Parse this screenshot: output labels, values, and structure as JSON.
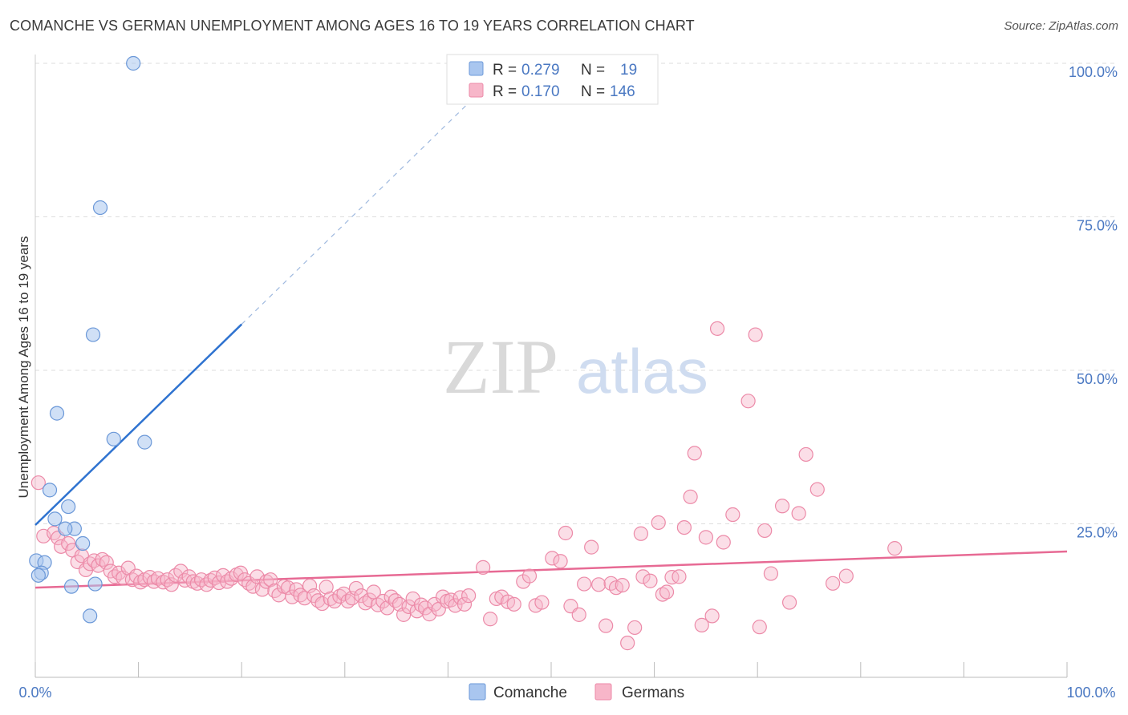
{
  "header": {
    "title": "COMANCHE VS GERMAN UNEMPLOYMENT AMONG AGES 16 TO 19 YEARS CORRELATION CHART",
    "source": "Source: ZipAtlas.com"
  },
  "watermark": {
    "zip": "ZIP",
    "atlas": "atlas"
  },
  "colors": {
    "comanche_fill": "#a9c6ef",
    "comanche_stroke": "#6b98d8",
    "comanche_line": "#2f73d0",
    "germans_fill": "#f7b6c9",
    "germans_stroke": "#ec8aa8",
    "germans_line": "#e76a94",
    "tick_text": "#4a78c2",
    "grid": "#dddddd"
  },
  "stats_box": {
    "rows": [
      {
        "r_label": "R =",
        "r_value": "0.279",
        "n_label": "N =",
        "n_value": "19"
      },
      {
        "r_label": "R =",
        "r_value": "0.170",
        "n_label": "N =",
        "n_value": "146"
      }
    ]
  },
  "chart_data": {
    "type": "scatter",
    "title": "COMANCHE VS GERMAN UNEMPLOYMENT AMONG AGES 16 TO 19 YEARS CORRELATION CHART",
    "xlabel": "",
    "ylabel": "Unemployment Among Ages 16 to 19 years",
    "xlim": [
      0,
      100
    ],
    "ylim": [
      0,
      100
    ],
    "x_tick_labels": [
      "0.0%",
      "100.0%"
    ],
    "y_ticks": [
      25,
      50,
      75,
      100
    ],
    "y_tick_labels": [
      "25.0%",
      "50.0%",
      "75.0%",
      "100.0%"
    ],
    "grid": true,
    "legend": "bottom-center",
    "series": [
      {
        "name": "Comanche",
        "r": 0.279,
        "n": 19,
        "trend": {
          "x": [
            0,
            20
          ],
          "y": [
            24.8,
            57.5
          ],
          "extension_x": [
            20,
            43.5
          ],
          "extension_y": [
            57.5,
            96
          ]
        },
        "points": [
          [
            9.5,
            100
          ],
          [
            6.3,
            76.5
          ],
          [
            5.6,
            55.8
          ],
          [
            2.1,
            43
          ],
          [
            7.6,
            38.8
          ],
          [
            10.6,
            38.3
          ],
          [
            1.4,
            30.5
          ],
          [
            3.2,
            27.8
          ],
          [
            1.9,
            25.8
          ],
          [
            3.8,
            24.2
          ],
          [
            2.9,
            24.2
          ],
          [
            4.6,
            21.8
          ],
          [
            0.1,
            19
          ],
          [
            0.9,
            18.7
          ],
          [
            0.6,
            17
          ],
          [
            0.3,
            16.6
          ],
          [
            3.5,
            14.8
          ],
          [
            5.8,
            15.2
          ],
          [
            5.3,
            10
          ]
        ]
      },
      {
        "name": "Germans",
        "r": 0.17,
        "n": 146,
        "trend": {
          "x": [
            0,
            100
          ],
          "y": [
            14.6,
            20.5
          ]
        },
        "points": [
          [
            0.3,
            31.7
          ],
          [
            0.8,
            23
          ],
          [
            1.8,
            23.5
          ],
          [
            2.2,
            22.7
          ],
          [
            2.5,
            21.3
          ],
          [
            3.2,
            21.8
          ],
          [
            3.6,
            20.7
          ],
          [
            4.1,
            18.8
          ],
          [
            4.5,
            19.8
          ],
          [
            4.9,
            17.5
          ],
          [
            5.3,
            18.5
          ],
          [
            5.7,
            19
          ],
          [
            6.1,
            18.2
          ],
          [
            6.5,
            19.2
          ],
          [
            6.9,
            18.7
          ],
          [
            7.3,
            17.3
          ],
          [
            7.7,
            16.4
          ],
          [
            8.1,
            17
          ],
          [
            8.5,
            16.2
          ],
          [
            9.0,
            17.8
          ],
          [
            9.4,
            15.9
          ],
          [
            9.8,
            16.5
          ],
          [
            10.2,
            15.5
          ],
          [
            10.6,
            15.9
          ],
          [
            11.1,
            16.3
          ],
          [
            11.5,
            15.6
          ],
          [
            11.9,
            16.1
          ],
          [
            12.4,
            15.5
          ],
          [
            12.8,
            15.9
          ],
          [
            13.2,
            15.1
          ],
          [
            13.6,
            16.6
          ],
          [
            14.1,
            17.3
          ],
          [
            14.5,
            15.8
          ],
          [
            14.9,
            16.4
          ],
          [
            15.3,
            15.6
          ],
          [
            15.7,
            15.3
          ],
          [
            16.1,
            15.9
          ],
          [
            16.6,
            15.1
          ],
          [
            17.0,
            15.8
          ],
          [
            17.4,
            16.2
          ],
          [
            17.8,
            15.4
          ],
          [
            18.2,
            16.6
          ],
          [
            18.6,
            15.6
          ],
          [
            19.0,
            16.1
          ],
          [
            19.5,
            16.7
          ],
          [
            19.9,
            17
          ],
          [
            20.3,
            15.9
          ],
          [
            20.7,
            15.3
          ],
          [
            21.1,
            14.8
          ],
          [
            21.5,
            16.4
          ],
          [
            22.0,
            14.3
          ],
          [
            22.4,
            15.6
          ],
          [
            22.8,
            15.9
          ],
          [
            23.2,
            14.1
          ],
          [
            23.6,
            13.4
          ],
          [
            24.1,
            14.8
          ],
          [
            24.5,
            14.6
          ],
          [
            24.9,
            13.1
          ],
          [
            25.3,
            14.3
          ],
          [
            25.7,
            13.4
          ],
          [
            26.1,
            12.9
          ],
          [
            26.6,
            14.9
          ],
          [
            27.0,
            13.3
          ],
          [
            27.4,
            12.5
          ],
          [
            27.8,
            12
          ],
          [
            28.2,
            14.7
          ],
          [
            28.6,
            12.8
          ],
          [
            29.0,
            12.4
          ],
          [
            29.5,
            13.2
          ],
          [
            29.9,
            13.6
          ],
          [
            30.3,
            12.4
          ],
          [
            30.7,
            12.9
          ],
          [
            31.1,
            14.5
          ],
          [
            31.6,
            13.3
          ],
          [
            32.0,
            12.1
          ],
          [
            32.4,
            12.6
          ],
          [
            32.8,
            13.9
          ],
          [
            33.2,
            11.8
          ],
          [
            33.7,
            12.4
          ],
          [
            34.1,
            11.3
          ],
          [
            34.5,
            13.1
          ],
          [
            34.9,
            12.5
          ],
          [
            35.3,
            11.9
          ],
          [
            35.7,
            10.2
          ],
          [
            36.2,
            11.5
          ],
          [
            36.6,
            12.8
          ],
          [
            37.0,
            10.8
          ],
          [
            37.4,
            11.8
          ],
          [
            37.8,
            11.3
          ],
          [
            38.2,
            10.3
          ],
          [
            38.7,
            11.9
          ],
          [
            39.1,
            11.1
          ],
          [
            39.5,
            13.1
          ],
          [
            39.9,
            12.4
          ],
          [
            40.3,
            12.6
          ],
          [
            40.7,
            11.7
          ],
          [
            41.2,
            13
          ],
          [
            41.6,
            11.9
          ],
          [
            42.0,
            13.3
          ],
          [
            43.4,
            17.9
          ],
          [
            44.1,
            9.5
          ],
          [
            44.7,
            12.8
          ],
          [
            45.2,
            13.1
          ],
          [
            45.8,
            12.3
          ],
          [
            46.4,
            11.9
          ],
          [
            47.3,
            15.6
          ],
          [
            47.9,
            16.5
          ],
          [
            48.5,
            11.7
          ],
          [
            49.1,
            12.2
          ],
          [
            50.1,
            19.4
          ],
          [
            50.9,
            18.9
          ],
          [
            51.4,
            23.5
          ],
          [
            51.9,
            11.6
          ],
          [
            52.7,
            10.2
          ],
          [
            53.2,
            15.2
          ],
          [
            53.9,
            21.2
          ],
          [
            54.6,
            15.1
          ],
          [
            55.3,
            8.4
          ],
          [
            55.8,
            15.3
          ],
          [
            56.3,
            14.6
          ],
          [
            56.9,
            15
          ],
          [
            57.4,
            5.6
          ],
          [
            58.1,
            8.1
          ],
          [
            58.7,
            23.4
          ],
          [
            58.9,
            16.4
          ],
          [
            59.6,
            15.7
          ],
          [
            60.4,
            25.2
          ],
          [
            60.8,
            13.5
          ],
          [
            61.2,
            13.9
          ],
          [
            61.7,
            16.3
          ],
          [
            62.4,
            16.4
          ],
          [
            62.9,
            24.4
          ],
          [
            63.5,
            29.4
          ],
          [
            63.9,
            36.5
          ],
          [
            64.6,
            8.5
          ],
          [
            65.0,
            22.8
          ],
          [
            65.6,
            10
          ],
          [
            66.1,
            56.8
          ],
          [
            66.7,
            22
          ],
          [
            67.6,
            26.5
          ],
          [
            69.1,
            45
          ],
          [
            69.8,
            55.8
          ],
          [
            70.2,
            8.2
          ],
          [
            70.7,
            23.9
          ],
          [
            71.3,
            16.9
          ],
          [
            72.4,
            27.9
          ],
          [
            73.1,
            12.2
          ],
          [
            74.0,
            26.7
          ],
          [
            74.7,
            36.3
          ],
          [
            75.8,
            30.6
          ],
          [
            77.3,
            15.3
          ],
          [
            78.6,
            16.5
          ],
          [
            83.3,
            21
          ]
        ]
      }
    ]
  },
  "legend": {
    "items": [
      "Comanche",
      "Germans"
    ]
  }
}
